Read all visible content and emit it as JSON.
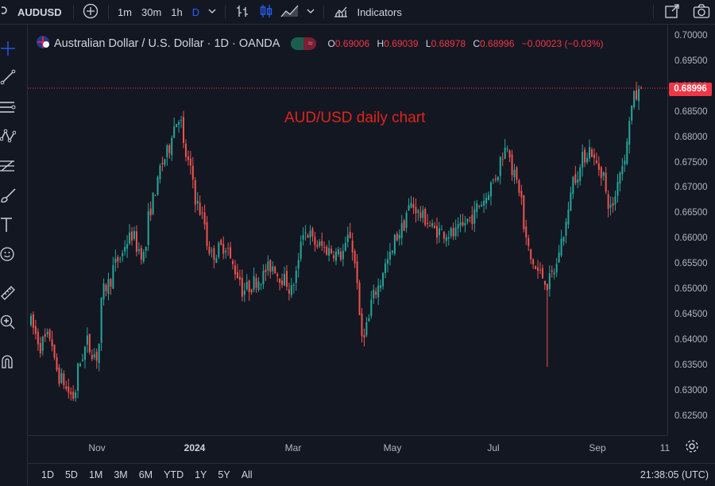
{
  "toolbar": {
    "symbol": "AUDUSD",
    "intervals": [
      "1m",
      "30m",
      "1h",
      "D"
    ],
    "indicators_label": "Indicators"
  },
  "legend": {
    "title": "Australian Dollar / U.S. Dollar · 1D · OANDA",
    "open_label": "O",
    "open": "0.69006",
    "high_label": "H",
    "high": "0.69039",
    "low_label": "L",
    "low": "0.68978",
    "close_label": "C",
    "close": "0.68996",
    "change": "−0.00023 (−0.03%)"
  },
  "annotation": "AUD/USD daily chart",
  "price_axis": {
    "ticks": [
      "0.70000",
      "0.69500",
      "0.69000",
      "0.68500",
      "0.68000",
      "0.67500",
      "0.67000",
      "0.66500",
      "0.66000",
      "0.65500",
      "0.65000",
      "0.64500",
      "0.64000",
      "0.63500",
      "0.63000",
      "0.62500"
    ],
    "current_price": "0.68996"
  },
  "time_axis": {
    "ticks": [
      {
        "label": "Nov",
        "bold": false
      },
      {
        "label": "2024",
        "bold": true
      },
      {
        "label": "Mar",
        "bold": false
      },
      {
        "label": "May",
        "bold": false
      },
      {
        "label": "Jul",
        "bold": false
      },
      {
        "label": "Sep",
        "bold": false
      },
      {
        "label": "11",
        "bold": false
      }
    ]
  },
  "bottombar": {
    "ranges": [
      "1D",
      "5D",
      "1M",
      "3M",
      "6M",
      "YTD",
      "1Y",
      "5Y",
      "All"
    ],
    "clock": "21:38:05 (UTC)"
  },
  "colors": {
    "up": "#26a69a",
    "down": "#ef5350",
    "background": "#131722",
    "price_tag": "#f23645"
  },
  "chart_data": {
    "type": "candlestick",
    "ylim": [
      0.6215,
      0.7025
    ],
    "anchors": [
      [
        "2023-10-01",
        0.645
      ],
      [
        "2023-10-06",
        0.639
      ],
      [
        "2023-10-12",
        0.641
      ],
      [
        "2023-10-18",
        0.633
      ],
      [
        "2023-10-26",
        0.629
      ],
      [
        "2023-11-03",
        0.64
      ],
      [
        "2023-11-09",
        0.637
      ],
      [
        "2023-11-14",
        0.65
      ],
      [
        "2023-11-22",
        0.656
      ],
      [
        "2023-11-30",
        0.661
      ],
      [
        "2023-12-07",
        0.657
      ],
      [
        "2023-12-14",
        0.67
      ],
      [
        "2023-12-28",
        0.6845
      ],
      [
        "2024-01-05",
        0.672
      ],
      [
        "2024-01-17",
        0.657
      ],
      [
        "2024-01-25",
        0.659
      ],
      [
        "2024-02-05",
        0.65
      ],
      [
        "2024-02-13",
        0.652
      ],
      [
        "2024-02-22",
        0.655
      ],
      [
        "2024-03-05",
        0.65
      ],
      [
        "2024-03-12",
        0.662
      ],
      [
        "2024-03-20",
        0.659
      ],
      [
        "2024-04-03",
        0.657
      ],
      [
        "2024-04-09",
        0.661
      ],
      [
        "2024-04-16",
        0.641
      ],
      [
        "2024-04-24",
        0.65
      ],
      [
        "2024-05-06",
        0.66
      ],
      [
        "2024-05-15",
        0.667
      ],
      [
        "2024-05-29",
        0.662
      ],
      [
        "2024-06-10",
        0.661
      ],
      [
        "2024-06-21",
        0.665
      ],
      [
        "2024-07-01",
        0.67
      ],
      [
        "2024-07-08",
        0.676
      ],
      [
        "2024-07-11",
        0.679
      ],
      [
        "2024-07-18",
        0.67
      ],
      [
        "2024-07-25",
        0.656
      ],
      [
        "2024-08-05",
        0.651
      ],
      [
        "2024-08-12",
        0.658
      ],
      [
        "2024-08-20",
        0.672
      ],
      [
        "2024-08-29",
        0.678
      ],
      [
        "2024-09-06",
        0.673
      ],
      [
        "2024-09-11",
        0.666
      ],
      [
        "2024-09-18",
        0.675
      ],
      [
        "2024-09-25",
        0.688
      ],
      [
        "2024-09-30",
        0.69
      ]
    ],
    "last_candle": {
      "open": 0.69006,
      "high": 0.69039,
      "low": 0.68978,
      "close": 0.68996
    }
  }
}
